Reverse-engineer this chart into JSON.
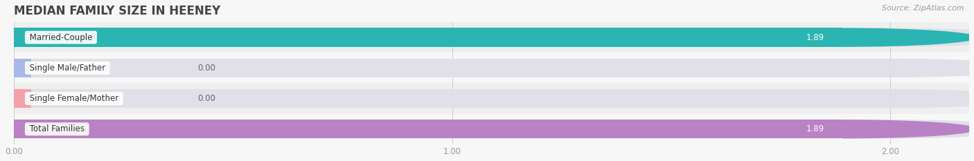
{
  "title": "MEDIAN FAMILY SIZE IN HEENEY",
  "source": "Source: ZipAtlas.com",
  "categories": [
    "Married-Couple",
    "Single Male/Father",
    "Single Female/Mother",
    "Total Families"
  ],
  "values": [
    1.89,
    0.0,
    0.0,
    1.89
  ],
  "bar_colors": [
    "#2ab5b2",
    "#a8b8ea",
    "#f4a0aa",
    "#b882c4"
  ],
  "track_color": "#e0e0e8",
  "xlim_data": 2.0,
  "xlim_display": 2.18,
  "xticks": [
    0.0,
    1.0,
    2.0
  ],
  "xtick_labels": [
    "0.00",
    "1.00",
    "2.00"
  ],
  "bar_height": 0.62,
  "background_color": "#f7f7f7",
  "row_bg_even": "#efefef",
  "row_bg_odd": "#f7f7f7",
  "title_fontsize": 12,
  "label_fontsize": 8.5,
  "value_fontsize": 8.5,
  "source_fontsize": 8
}
